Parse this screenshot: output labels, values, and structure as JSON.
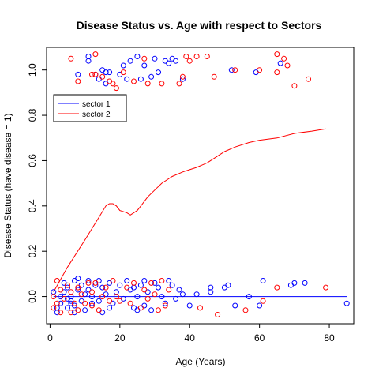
{
  "chart_data": {
    "type": "scatter",
    "title": "Disease Status vs. Age with respect to Sectors",
    "xlabel": "Age (Years)",
    "ylabel": "Disease Status (have disease = 1)",
    "xlim": [
      -1,
      87
    ],
    "ylim": [
      -0.12,
      1.1
    ],
    "x_ticks": [
      0,
      20,
      40,
      60,
      80
    ],
    "y_ticks": [
      0.0,
      0.2,
      0.4,
      0.6,
      0.8,
      1.0
    ],
    "x_tick_labels": [
      "0",
      "20",
      "40",
      "60",
      "80"
    ],
    "y_tick_labels": [
      "0.0",
      "0.2",
      "0.4",
      "0.6",
      "0.8",
      "1.0"
    ],
    "legend": {
      "position": "top-left",
      "entries": [
        {
          "label": "sector 1",
          "color": "#0000ff"
        },
        {
          "label": "sector 2",
          "color": "#ff0000"
        }
      ]
    },
    "series": [
      {
        "name": "sector 1",
        "kind": "points",
        "color": "#0000ff",
        "points": [
          [
            1,
            0.02
          ],
          [
            2,
            -0.05
          ],
          [
            2,
            -0.07
          ],
          [
            3,
            0.0
          ],
          [
            3,
            -0.03
          ],
          [
            4,
            0.06
          ],
          [
            4,
            0.02
          ],
          [
            5,
            -0.01
          ],
          [
            5,
            -0.05
          ],
          [
            5,
            0.04
          ],
          [
            6,
            0.0
          ],
          [
            6,
            -0.02
          ],
          [
            6,
            -0.03
          ],
          [
            7,
            0.07
          ],
          [
            7,
            -0.04
          ],
          [
            7,
            -0.07
          ],
          [
            8,
            0.08
          ],
          [
            8,
            0.03
          ],
          [
            9,
            -0.02
          ],
          [
            9,
            0.05
          ],
          [
            10,
            0.01
          ],
          [
            10,
            -0.06
          ],
          [
            11,
            0.07
          ],
          [
            11,
            0.03
          ],
          [
            12,
            -0.03
          ],
          [
            12,
            0.0
          ],
          [
            13,
            0.05
          ],
          [
            14,
            -0.02
          ],
          [
            14,
            0.07
          ],
          [
            15,
            0.04
          ],
          [
            15,
            -0.07
          ],
          [
            16,
            0.01
          ],
          [
            17,
            0.06
          ],
          [
            17,
            -0.05
          ],
          [
            18,
            -0.03
          ],
          [
            19,
            0.02
          ],
          [
            20,
            0.05
          ],
          [
            21,
            -0.01
          ],
          [
            22,
            0.07
          ],
          [
            23,
            0.03
          ],
          [
            24,
            -0.05
          ],
          [
            24,
            0.04
          ],
          [
            25,
            0.0
          ],
          [
            25,
            -0.06
          ],
          [
            26,
            0.05
          ],
          [
            27,
            0.07
          ],
          [
            27,
            -0.04
          ],
          [
            28,
            0.02
          ],
          [
            29,
            -0.06
          ],
          [
            30,
            0.06
          ],
          [
            31,
            0.04
          ],
          [
            32,
            0.0
          ],
          [
            33,
            -0.03
          ],
          [
            34,
            0.07
          ],
          [
            35,
            0.05
          ],
          [
            36,
            -0.01
          ],
          [
            37,
            0.03
          ],
          [
            38,
            0.01
          ],
          [
            40,
            -0.04
          ],
          [
            42,
            0.01
          ],
          [
            46,
            0.02
          ],
          [
            46,
            0.04
          ],
          [
            50,
            0.04
          ],
          [
            51,
            0.05
          ],
          [
            53,
            -0.04
          ],
          [
            57,
            0.0
          ],
          [
            60,
            -0.04
          ],
          [
            61,
            0.07
          ],
          [
            69,
            0.05
          ],
          [
            70,
            0.06
          ],
          [
            73,
            0.06
          ],
          [
            85,
            -0.03
          ],
          [
            8,
            0.98
          ],
          [
            11,
            1.06
          ],
          [
            11,
            1.04
          ],
          [
            13,
            0.98
          ],
          [
            14,
            0.96
          ],
          [
            15,
            1.0
          ],
          [
            16,
            0.94
          ],
          [
            16,
            0.99
          ],
          [
            17,
            0.99
          ],
          [
            20,
            0.98
          ],
          [
            21,
            1.02
          ],
          [
            22,
            0.96
          ],
          [
            23,
            1.04
          ],
          [
            25,
            1.06
          ],
          [
            26,
            0.96
          ],
          [
            27,
            1.02
          ],
          [
            29,
            0.97
          ],
          [
            30,
            1.05
          ],
          [
            31,
            0.99
          ],
          [
            33,
            1.04
          ],
          [
            34,
            1.03
          ],
          [
            35,
            1.05
          ],
          [
            36,
            1.04
          ],
          [
            38,
            0.96
          ],
          [
            52,
            1.0
          ],
          [
            59,
            0.99
          ],
          [
            66,
            1.03
          ]
        ]
      },
      {
        "name": "sector 2",
        "kind": "points",
        "color": "#ff0000",
        "points": [
          [
            1,
            -0.05
          ],
          [
            1,
            0.0
          ],
          [
            2,
            0.07
          ],
          [
            2,
            -0.03
          ],
          [
            3,
            0.03
          ],
          [
            3,
            -0.07
          ],
          [
            4,
            -0.01
          ],
          [
            5,
            0.05
          ],
          [
            6,
            -0.07
          ],
          [
            6,
            0.02
          ],
          [
            7,
            -0.03
          ],
          [
            8,
            0.04
          ],
          [
            8,
            -0.06
          ],
          [
            9,
            0.01
          ],
          [
            10,
            -0.03
          ],
          [
            11,
            0.06
          ],
          [
            12,
            -0.04
          ],
          [
            12,
            0.02
          ],
          [
            13,
            0.06
          ],
          [
            14,
            -0.06
          ],
          [
            15,
            0.0
          ],
          [
            16,
            0.04
          ],
          [
            17,
            -0.02
          ],
          [
            18,
            0.07
          ],
          [
            19,
            0.0
          ],
          [
            20,
            -0.02
          ],
          [
            22,
            0.04
          ],
          [
            23,
            -0.03
          ],
          [
            24,
            0.06
          ],
          [
            26,
            -0.05
          ],
          [
            27,
            0.03
          ],
          [
            28,
            -0.01
          ],
          [
            29,
            0.06
          ],
          [
            30,
            0.01
          ],
          [
            31,
            -0.06
          ],
          [
            32,
            0.07
          ],
          [
            33,
            -0.04
          ],
          [
            34,
            0.03
          ],
          [
            43,
            -0.05
          ],
          [
            48,
            -0.08
          ],
          [
            56,
            -0.06
          ],
          [
            61,
            -0.02
          ],
          [
            65,
            0.04
          ],
          [
            79,
            0.04
          ],
          [
            6,
            1.05
          ],
          [
            8,
            0.95
          ],
          [
            12,
            0.98
          ],
          [
            13,
            1.07
          ],
          [
            13,
            0.98
          ],
          [
            15,
            0.97
          ],
          [
            17,
            0.95
          ],
          [
            18,
            0.94
          ],
          [
            19,
            0.92
          ],
          [
            21,
            0.99
          ],
          [
            24,
            0.95
          ],
          [
            27,
            1.05
          ],
          [
            28,
            0.94
          ],
          [
            32,
            0.94
          ],
          [
            37,
            0.94
          ],
          [
            38,
            0.97
          ],
          [
            39,
            1.06
          ],
          [
            40,
            1.04
          ],
          [
            42,
            1.06
          ],
          [
            45,
            1.06
          ],
          [
            47,
            0.97
          ],
          [
            53,
            1.0
          ],
          [
            60,
            1.0
          ],
          [
            65,
            1.07
          ],
          [
            65,
            0.99
          ],
          [
            67,
            1.05
          ],
          [
            68,
            1.02
          ],
          [
            70,
            0.93
          ],
          [
            74,
            0.96
          ]
        ]
      },
      {
        "name": "sector 1",
        "kind": "line",
        "color": "#0000ff",
        "x": [
          1,
          85
        ],
        "y": [
          0.0,
          0.0
        ]
      },
      {
        "name": "sector 2",
        "kind": "line",
        "color": "#ff0000",
        "x": [
          1,
          5,
          10,
          14,
          16,
          17,
          18,
          19,
          20,
          22,
          23,
          25,
          26,
          28,
          30,
          32,
          35,
          38,
          40,
          42,
          45,
          48,
          50,
          53,
          57,
          60,
          65,
          70,
          75,
          79
        ],
        "y": [
          0.02,
          0.13,
          0.25,
          0.35,
          0.4,
          0.41,
          0.41,
          0.4,
          0.38,
          0.37,
          0.36,
          0.38,
          0.4,
          0.44,
          0.47,
          0.5,
          0.53,
          0.55,
          0.56,
          0.57,
          0.59,
          0.62,
          0.64,
          0.66,
          0.68,
          0.69,
          0.7,
          0.72,
          0.73,
          0.74
        ]
      }
    ]
  }
}
